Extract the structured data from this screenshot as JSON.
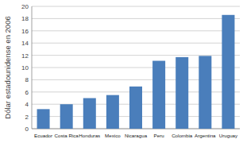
{
  "chart_data": {
    "type": "bar",
    "y_label": "Dólar estadounidense en 2006",
    "categories": [
      "Ecuador",
      "Costa Rica",
      "Honduras",
      "Mexico",
      "Nicaragua",
      "Peru",
      "Colombia",
      "Argentina",
      "Uruguay"
    ],
    "values": [
      3.2,
      4.0,
      5.0,
      5.5,
      6.9,
      11.1,
      11.7,
      11.9,
      18.6
    ],
    "color": "#4a7ebb",
    "ylim": [
      0,
      20
    ],
    "yticks": [
      0,
      2,
      4,
      6,
      8,
      10,
      12,
      14,
      16,
      18,
      20
    ],
    "grid": true
  }
}
